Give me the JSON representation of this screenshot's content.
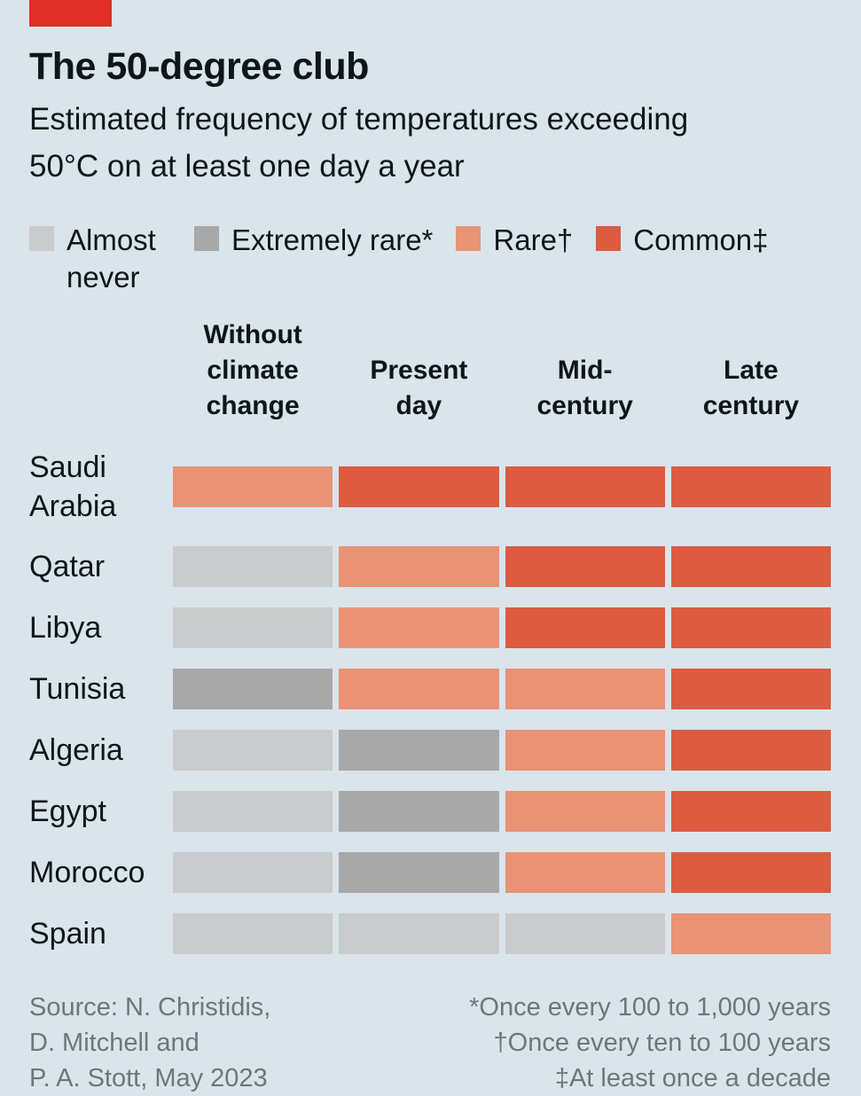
{
  "header": {
    "title": "The 50-degree club",
    "subtitle": "Estimated frequency of temperatures exceeding\n50°C on at least one day a year"
  },
  "palette": {
    "background": "#D9E4EB",
    "brand_red": "#E02F27",
    "almost_never": "#C9CBCC",
    "extremely_rare": "#A8A8A9",
    "rare": "#E99275",
    "common": "#DD5B40",
    "text_dark": "#0E161C",
    "text_muted": "#6F767B"
  },
  "chart_data": {
    "type": "heatmap",
    "title": "The 50-degree club",
    "subtitle": "Estimated frequency of temperatures exceeding 50°C on at least one day a year",
    "legend_position": "top",
    "levels": [
      {
        "key": "almost_never",
        "label": "Almost never"
      },
      {
        "key": "extremely_rare",
        "label": "Extremely rare*"
      },
      {
        "key": "rare",
        "label": "Rare†"
      },
      {
        "key": "common",
        "label": "Common‡"
      }
    ],
    "columns": [
      "Without climate change",
      "Present day",
      "Mid-century",
      "Late century"
    ],
    "column_display": [
      "Without\nclimate\nchange",
      "Present\nday",
      "Mid-\ncentury",
      "Late\ncentury"
    ],
    "rows": [
      {
        "label": "Saudi Arabia",
        "values": [
          "rare",
          "common",
          "common",
          "common"
        ]
      },
      {
        "label": "Qatar",
        "values": [
          "almost_never",
          "rare",
          "common",
          "common"
        ]
      },
      {
        "label": "Libya",
        "values": [
          "almost_never",
          "rare",
          "common",
          "common"
        ]
      },
      {
        "label": "Tunisia",
        "values": [
          "extremely_rare",
          "rare",
          "rare",
          "common"
        ]
      },
      {
        "label": "Algeria",
        "values": [
          "almost_never",
          "extremely_rare",
          "rare",
          "common"
        ]
      },
      {
        "label": "Egypt",
        "values": [
          "almost_never",
          "extremely_rare",
          "rare",
          "common"
        ]
      },
      {
        "label": "Morocco",
        "values": [
          "almost_never",
          "extremely_rare",
          "rare",
          "common"
        ]
      },
      {
        "label": "Spain",
        "values": [
          "almost_never",
          "almost_never",
          "almost_never",
          "rare"
        ]
      }
    ]
  },
  "footer": {
    "source": "Source: N. Christidis,\nD. Mitchell and\nP. A. Stott, May 2023",
    "footnotes": "*Once every 100 to 1,000 years\n†Once every ten to 100 years\n‡At least once a decade"
  }
}
